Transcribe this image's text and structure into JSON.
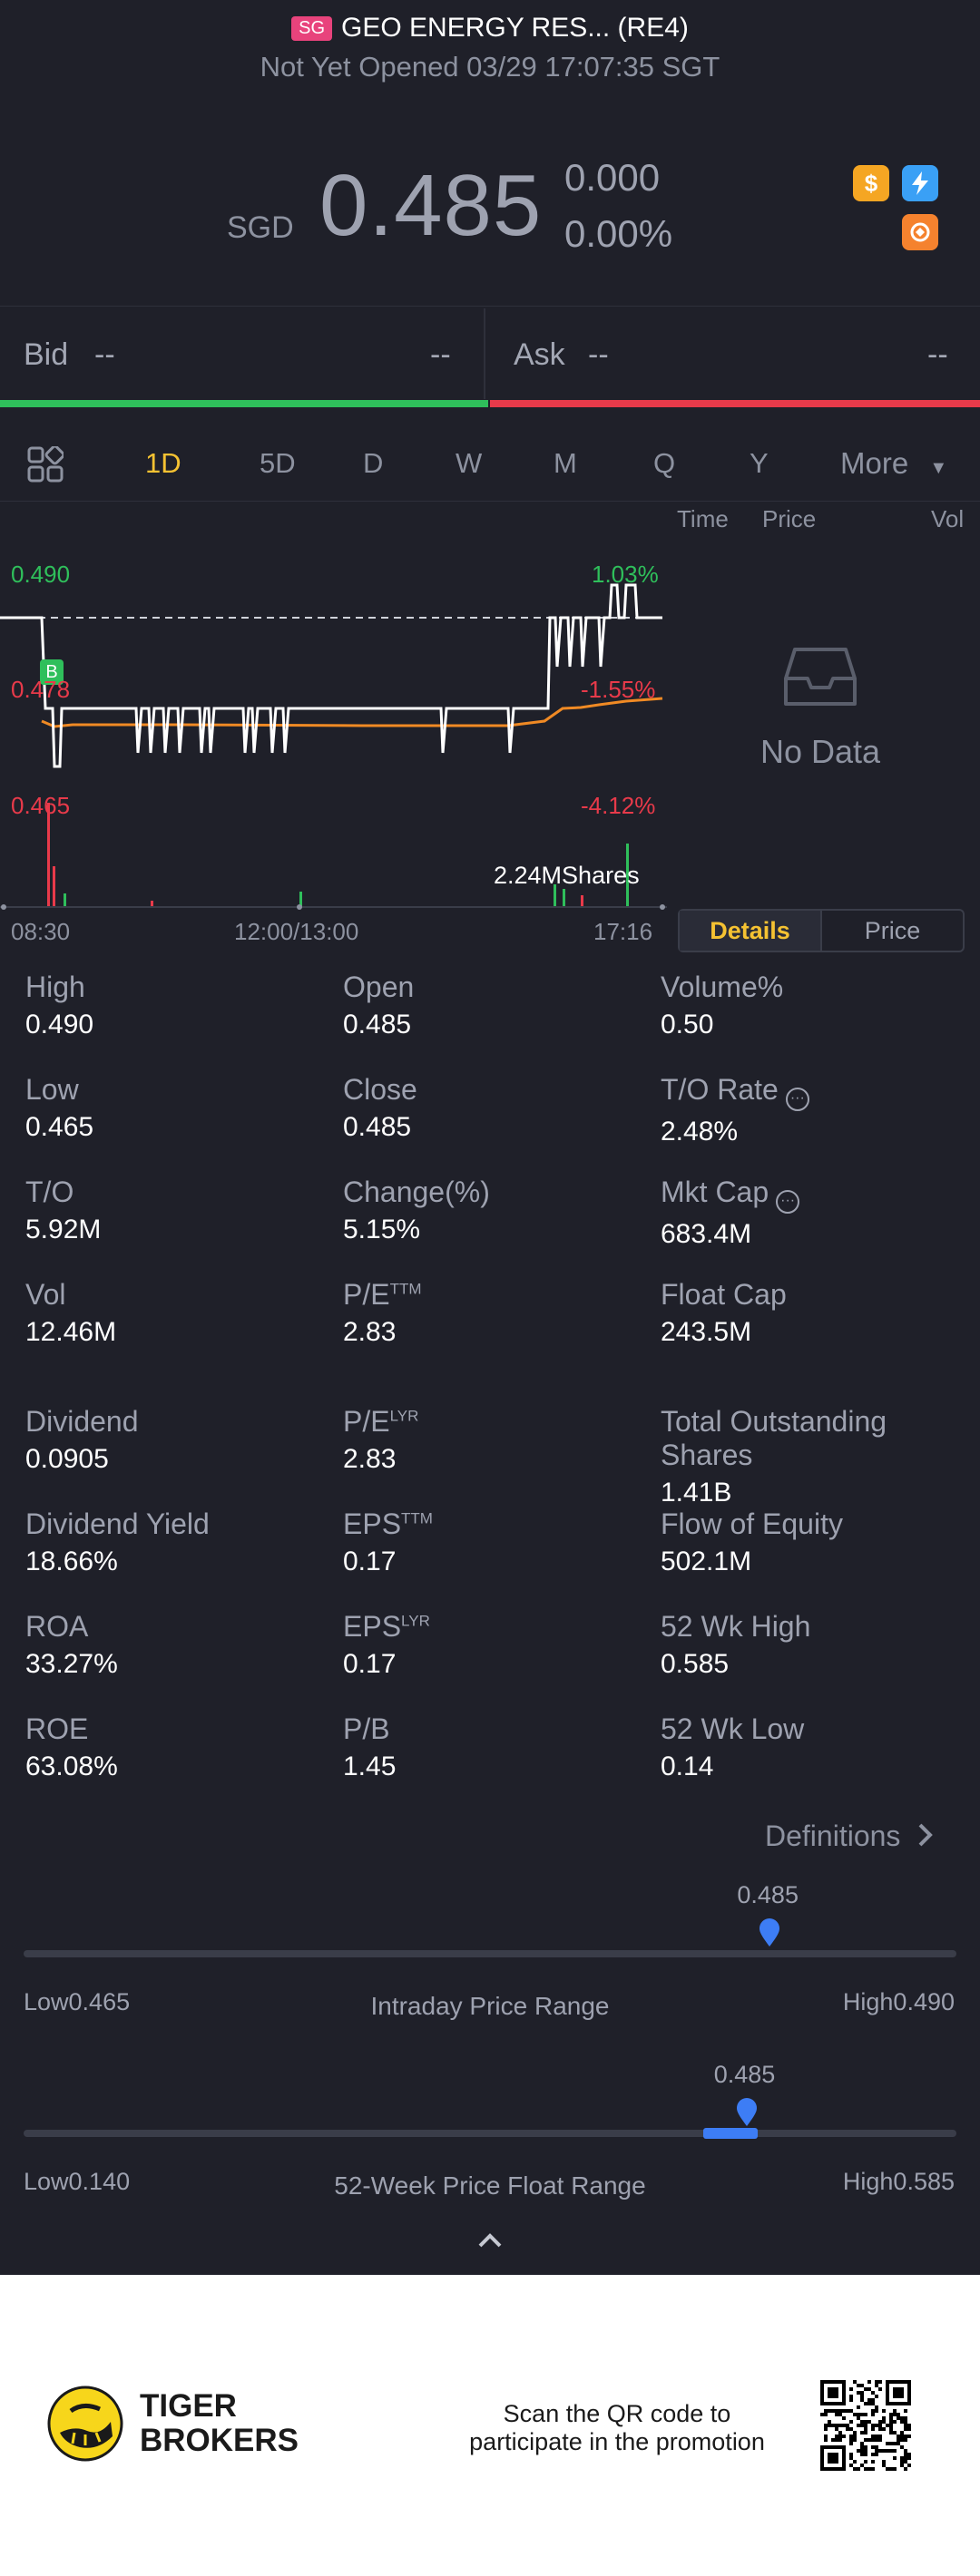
{
  "header": {
    "market_badge": "SG",
    "title": "GEO ENERGY RES... (RE4)",
    "status": "Not Yet Opened 03/29 17:07:35 SGT"
  },
  "quote": {
    "currency": "SGD",
    "price": "0.485",
    "change": "0.000",
    "change_pct": "0.00%"
  },
  "icons": [
    "dollar-icon",
    "flash-icon",
    "exchange-icon"
  ],
  "bidask": {
    "bid_label": "Bid",
    "bid_price": "--",
    "bid_size": "--",
    "ask_label": "Ask",
    "ask_price": "--",
    "ask_size": "--"
  },
  "tabs": [
    "1D",
    "5D",
    "D",
    "W",
    "M",
    "Q",
    "Y",
    "More"
  ],
  "active_tab": "1D",
  "trades_panel": {
    "col_time": "Time",
    "col_price": "Price",
    "col_vol": "Vol",
    "empty": "No Data"
  },
  "chart": {
    "y_high": "0.490",
    "y_mid": "0.478",
    "y_low": "0.465",
    "pct_high": "1.03%",
    "pct_mid": "-1.55%",
    "pct_low": "-4.12%",
    "volume_label": "2.24MShares",
    "x_start": "08:30",
    "x_mid": "12:00/13:00",
    "x_end": "17:16",
    "marker": "B"
  },
  "segment": {
    "details": "Details",
    "price": "Price"
  },
  "stats": [
    {
      "label": "High",
      "value": "0.490"
    },
    {
      "label": "Open",
      "value": "0.485"
    },
    {
      "label": "Volume%",
      "value": "0.50"
    },
    {
      "label": "Low",
      "value": "0.465"
    },
    {
      "label": "Close",
      "value": "0.485"
    },
    {
      "label": "T/O Rate",
      "value": "2.48%"
    },
    {
      "label": "T/O",
      "value": "5.92M"
    },
    {
      "label": "Change(%)",
      "value": "5.15%"
    },
    {
      "label": "Mkt Cap",
      "value": "683.4M"
    },
    {
      "label": "Vol",
      "value": "12.46M"
    },
    {
      "label": "P/E",
      "sup": "TTM",
      "value": "2.83"
    },
    {
      "label": "Float Cap",
      "value": "243.5M"
    },
    {
      "label": "Dividend",
      "value": "0.0905"
    },
    {
      "label": "P/E",
      "sup": "LYR",
      "value": "2.83"
    },
    {
      "label": "Total Outstanding Shares",
      "value": "1.41B"
    },
    {
      "label": "Dividend Yield",
      "value": "18.66%"
    },
    {
      "label": "EPS",
      "sup": "TTM",
      "value": "0.17"
    },
    {
      "label": "Flow of Equity",
      "value": "502.1M"
    },
    {
      "label": "ROA",
      "value": "33.27%"
    },
    {
      "label": "EPS",
      "sup": "LYR",
      "value": "0.17"
    },
    {
      "label": "52 Wk High",
      "value": "0.585"
    },
    {
      "label": "ROE",
      "value": "63.08%"
    },
    {
      "label": "P/B",
      "value": "1.45"
    },
    {
      "label": "52 Wk Low",
      "value": "0.14"
    }
  ],
  "definitions": "Definitions",
  "intraday": {
    "current": "0.485",
    "low_label": "Low",
    "low": "0.465",
    "title": "Intraday Price Range",
    "high_label": "High",
    "high": "0.490",
    "position": 0.8
  },
  "week52": {
    "current": "0.485",
    "low_label": "Low",
    "low": "0.140",
    "title": "52-Week Price Float Range",
    "high_label": "High",
    "high": "0.585",
    "position": 0.775
  },
  "footer": {
    "brand_line1": "TIGER",
    "brand_line2": "BROKERS",
    "promo_line1": "Scan the QR code to",
    "promo_line2": "participate in the promotion"
  },
  "colors": {
    "background": "#1f2029",
    "up": "#2fbf5b",
    "down": "#e83a4a",
    "accent": "#f5c232",
    "range_marker": "#3d7df5"
  }
}
